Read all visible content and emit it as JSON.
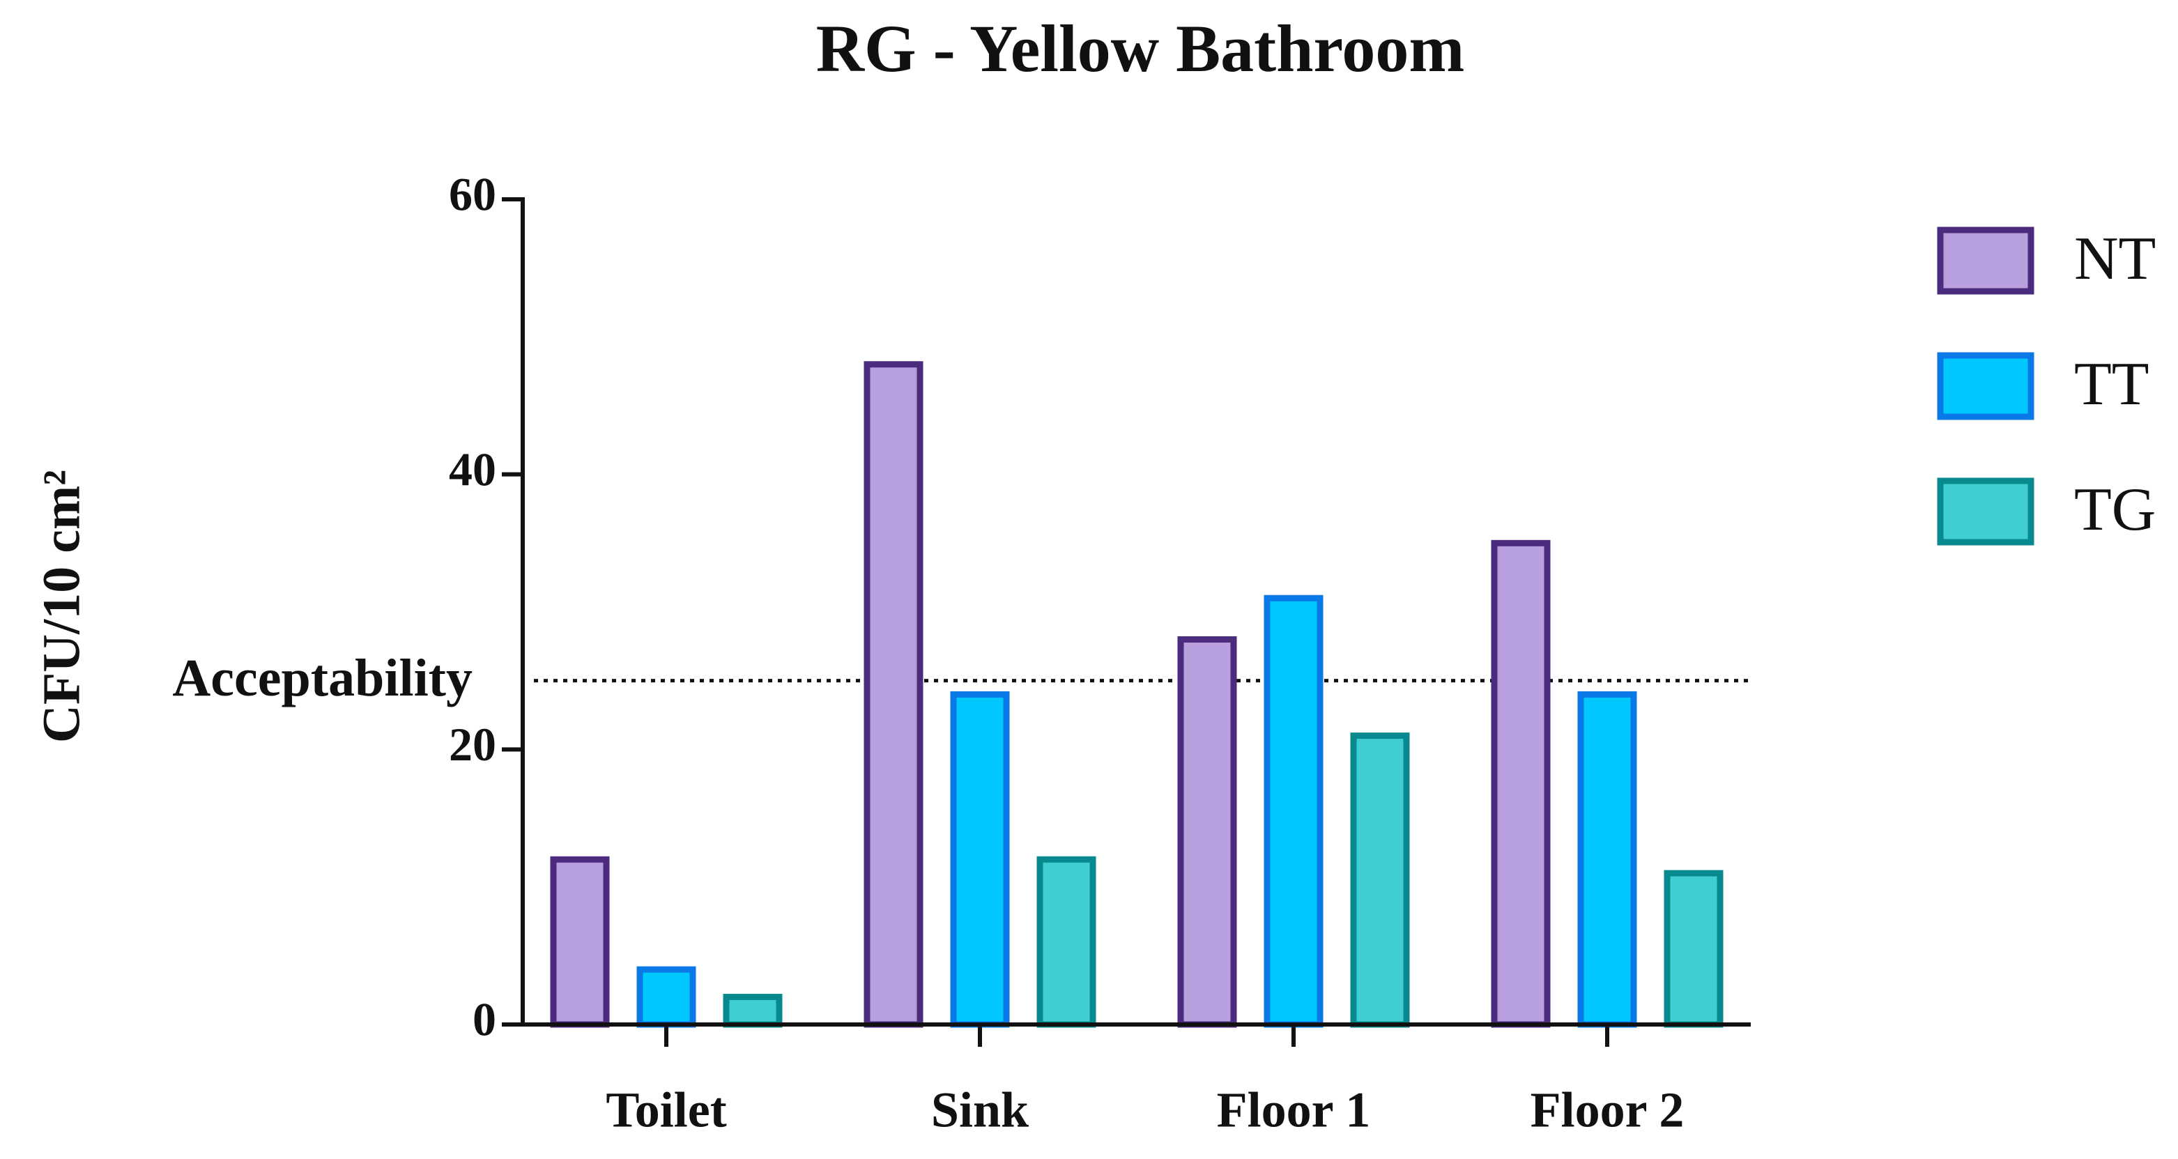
{
  "chart_data": {
    "type": "bar",
    "title": "RG - Yellow Bathroom",
    "y_label": "CFU/10 cm²",
    "categories": [
      "Toilet",
      "Sink",
      "Floor 1",
      "Floor 2"
    ],
    "series": [
      {
        "name": "NT",
        "color": "#b7a0dd",
        "edge_color": "#4b2b7d",
        "values": [
          12,
          48,
          28,
          35
        ]
      },
      {
        "name": "TT",
        "color": "#00c8ff",
        "edge_color": "#0a78e6",
        "values": [
          4,
          24,
          31,
          24
        ]
      },
      {
        "name": "TG",
        "color": "#3fcfd2",
        "edge_color": "#07898e",
        "values": [
          2,
          12,
          21,
          11
        ]
      }
    ],
    "reference_line": {
      "value": 25,
      "label": "Acceptability"
    },
    "ylim": [
      0,
      60
    ],
    "yticks": [
      0,
      20,
      40,
      60
    ],
    "grid": false,
    "legend": "right"
  }
}
